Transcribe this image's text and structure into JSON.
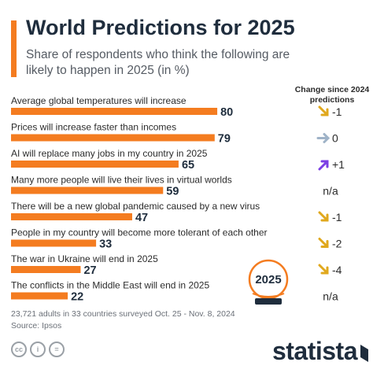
{
  "header": {
    "title": "World Predictions for 2025",
    "subtitle": "Share of respondents who think the following are likely to happen in 2025 (in %)",
    "change_header": "Change since 2024 predictions"
  },
  "chart_data": {
    "type": "bar",
    "orientation": "horizontal",
    "bar_color": "#f47c20",
    "categories": [
      "Average global temperatures will increase",
      "Prices will increase faster than incomes",
      "AI will replace many jobs in my country in 2025",
      "Many more people will live their lives in virtual worlds",
      "There will be a new global pandemic caused by a new virus",
      "People in my country will become more tolerant of each other",
      "The war in Ukraine will end in 2025",
      "The conflicts in the Middle East will end in 2025"
    ],
    "values": [
      80,
      79,
      65,
      59,
      47,
      33,
      27,
      22
    ],
    "changes": [
      {
        "text": "-1",
        "icon": "arrow-down-right-icon",
        "color": "#e0a81d"
      },
      {
        "text": "0",
        "icon": "arrow-right-icon",
        "color": "#9fb3c8"
      },
      {
        "text": "+1",
        "icon": "arrow-up-right-icon",
        "color": "#7b3fe4"
      },
      {
        "text": "n/a",
        "icon": "",
        "color": ""
      },
      {
        "text": "-1",
        "icon": "arrow-down-right-icon",
        "color": "#e0a81d"
      },
      {
        "text": "-2",
        "icon": "arrow-down-right-icon",
        "color": "#e0a81d"
      },
      {
        "text": "-4",
        "icon": "arrow-down-right-icon",
        "color": "#e0a81d"
      },
      {
        "text": "n/a",
        "icon": "",
        "color": ""
      }
    ],
    "xlim": [
      0,
      100
    ]
  },
  "badge": {
    "text": "2025",
    "icon": "crystal-ball-icon",
    "accent": "#f47c20"
  },
  "notes": {
    "survey": "23,721 adults in 33 countries surveyed Oct. 25 - Nov. 8, 2024",
    "source": "Source: Ipsos"
  },
  "footer": {
    "brand": "statista",
    "license_icons": [
      "cc-icon",
      "attribution-icon",
      "equals-icon"
    ],
    "license_labels": [
      "cc",
      "i",
      "="
    ]
  }
}
